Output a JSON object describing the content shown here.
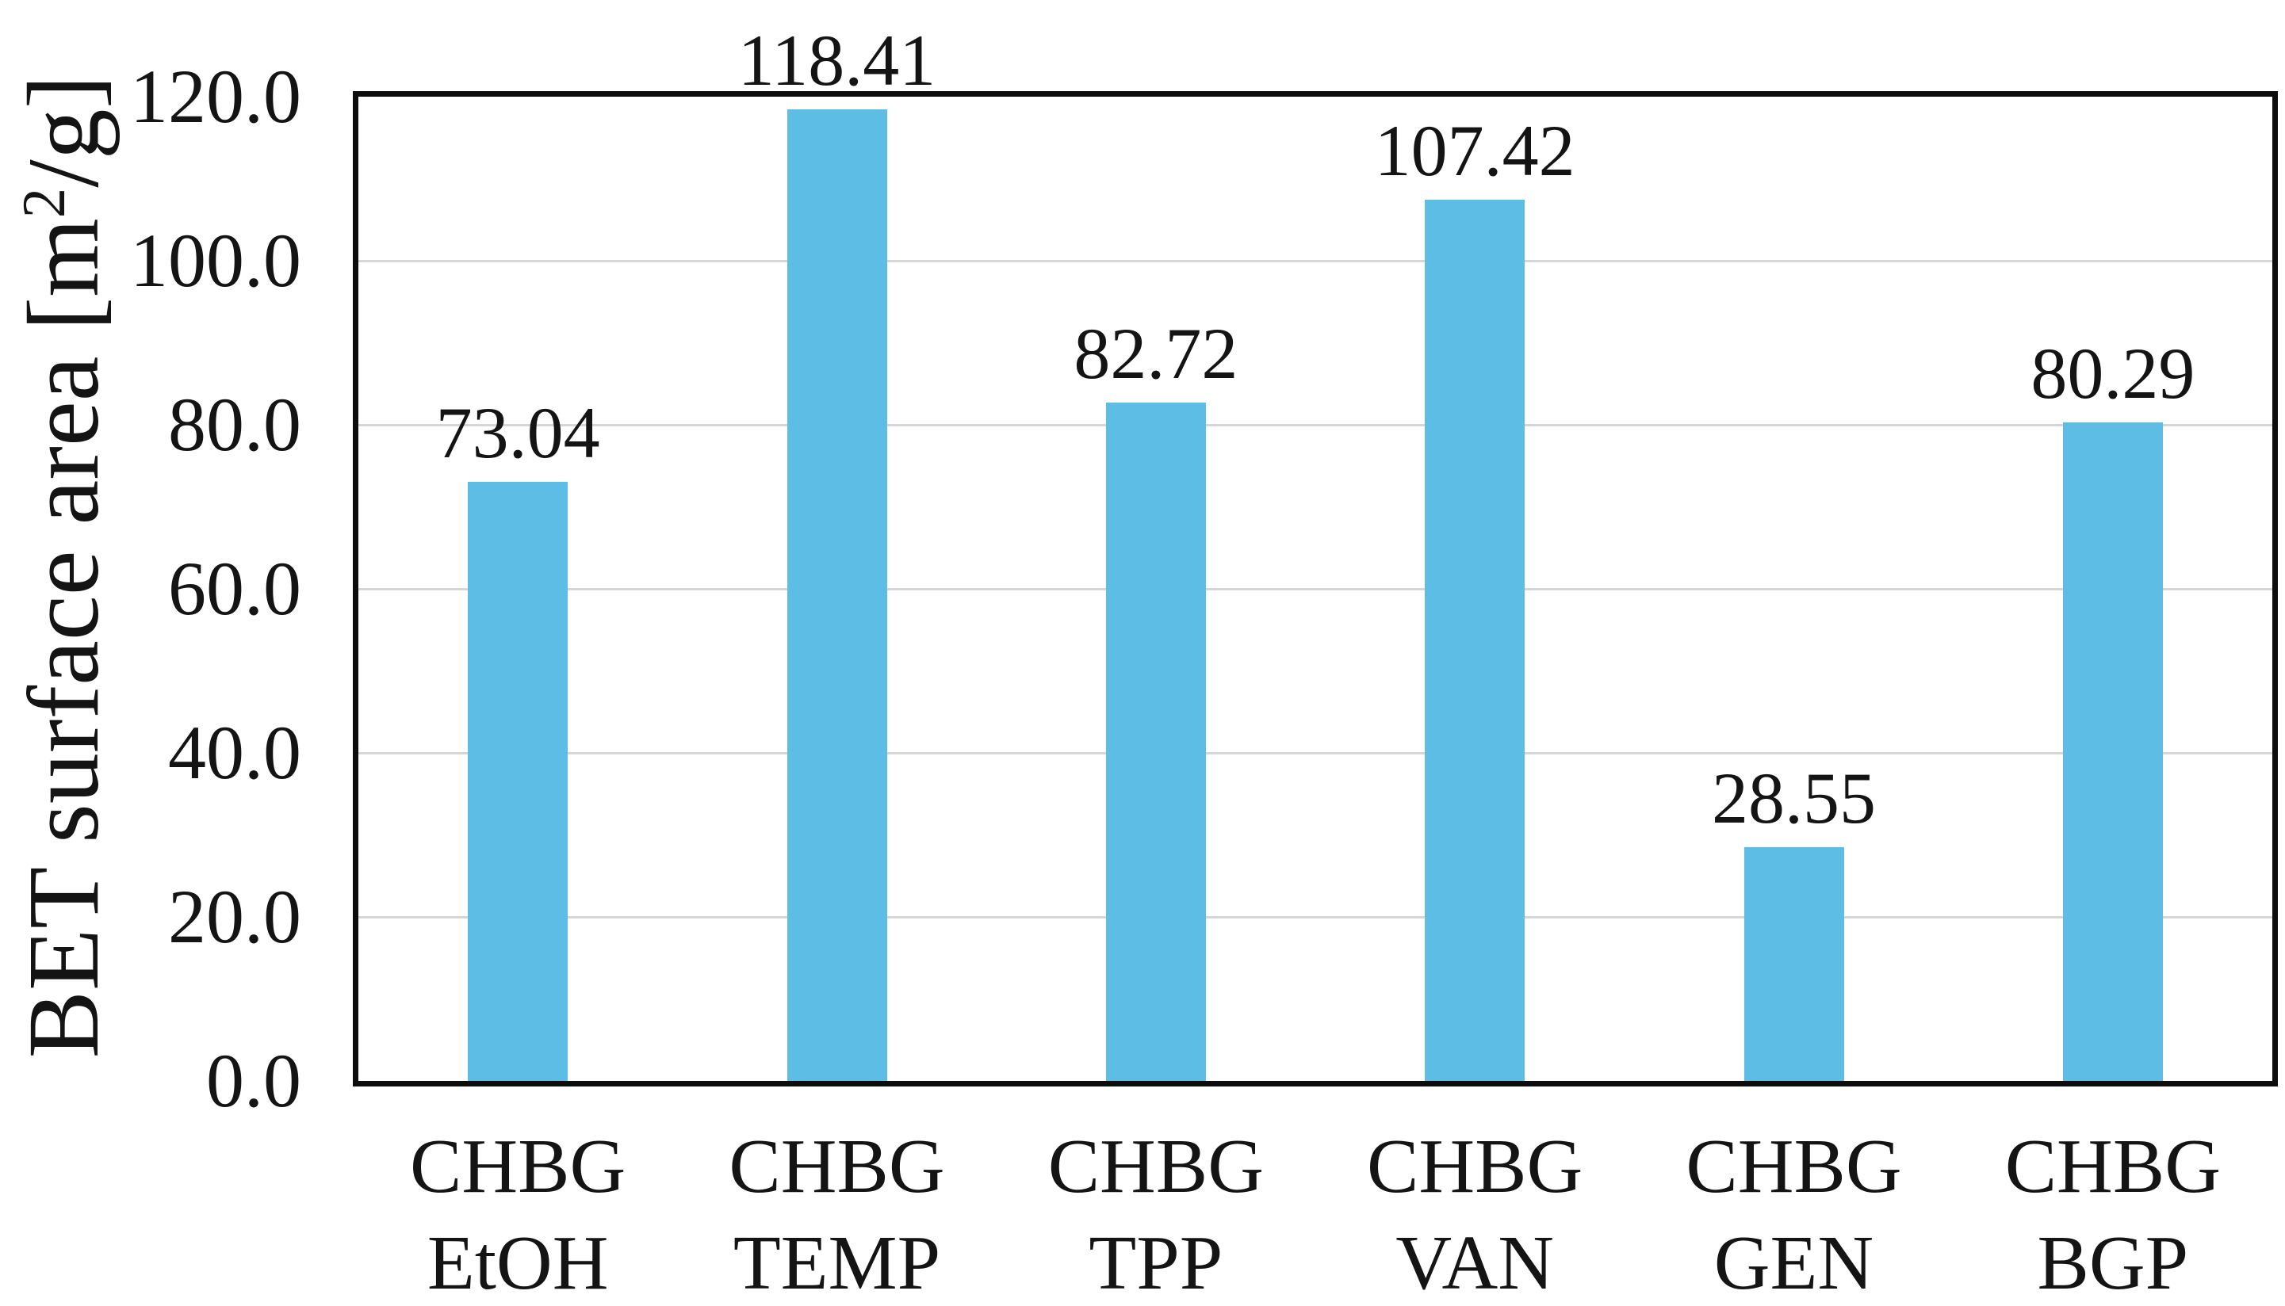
{
  "chart_data": {
    "type": "bar",
    "title": "",
    "categories": [
      "CHBG EtOH",
      "CHBG TEMP",
      "CHBG TPP",
      "CHBG VAN",
      "CHBG GEN",
      "CHBG BGP"
    ],
    "values": [
      73.04,
      118.41,
      82.72,
      107.42,
      28.55,
      80.29
    ],
    "value_labels": [
      "73.04",
      "118.41",
      "82.72",
      "107.42",
      "28.55",
      "80.29"
    ],
    "xlabel": "",
    "ylabel": "BET surface area [m²/g]",
    "ylabel_parts": {
      "prefix": "BET surface area [m",
      "sup": "2",
      "suffix": "/g]"
    },
    "ylim": [
      0,
      120
    ],
    "ytick_step": 20,
    "ytick_labels": [
      "0.0",
      "20.0",
      "40.0",
      "60.0",
      "80.0",
      "100.0",
      "120.0"
    ],
    "grid": "horizontal-major",
    "legend": "none",
    "series_name": "BET surface area"
  },
  "colors": {
    "bar": "#5dbde4",
    "grid": "#d6d6d6",
    "axis_border": "#0d0d0d",
    "text": "#141414",
    "background": "#ffffff"
  }
}
